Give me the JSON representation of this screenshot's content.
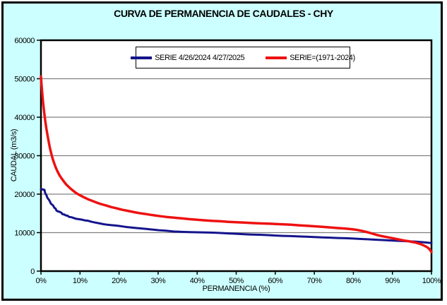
{
  "window": {
    "title": "CURVA DE PERMANENCIA DE CAUDALES - CHY"
  },
  "axes": {
    "x_title": "PERMANENCIA (%)",
    "y_title": "CAUDAL (m3/s)",
    "x_ticks": [
      "0%",
      "10%",
      "20%",
      "30%",
      "40%",
      "50%",
      "60%",
      "70%",
      "80%",
      "90%",
      "100%"
    ],
    "y_ticks": [
      "0",
      "10000",
      "20000",
      "30000",
      "40000",
      "50000",
      "60000"
    ]
  },
  "legend": {
    "entries": [
      {
        "label": "SERIE 4/26/2024 4/27/2025",
        "color": "#14148C"
      },
      {
        "label": "SERIE=(1971-2024)",
        "color": "#EE1111"
      }
    ]
  },
  "colors": {
    "background": "#CCFFFF",
    "plot_background": "#FFFFFF",
    "gridline": "#808080",
    "frame": "#000000",
    "series_blue": "#14148C",
    "series_red": "#EE1111"
  },
  "chart_data": {
    "type": "line",
    "title": "CURVA DE PERMANENCIA DE CAUDALES - CHY",
    "xlabel": "PERMANENCIA (%)",
    "ylabel": "CAUDAL (m3/s)",
    "xlim": [
      0,
      100
    ],
    "ylim": [
      0,
      60000
    ],
    "x_tick_step": 10,
    "y_tick_step": 10000,
    "grid": "horizontal-only",
    "legend_position": "top-center-inside",
    "series": [
      {
        "name": "SERIE 4/26/2024 4/27/2025",
        "color": "#14148C",
        "width": 3,
        "points": [
          [
            0,
            21300
          ],
          [
            0.6,
            21200
          ],
          [
            0.9,
            21100
          ],
          [
            1.0,
            20600
          ],
          [
            1.2,
            20000
          ],
          [
            1.4,
            19800
          ],
          [
            1.6,
            19200
          ],
          [
            1.8,
            18800
          ],
          [
            2.0,
            18600
          ],
          [
            2.3,
            18100
          ],
          [
            2.5,
            17600
          ],
          [
            2.8,
            17300
          ],
          [
            3.1,
            17100
          ],
          [
            3.4,
            16500
          ],
          [
            3.7,
            16300
          ],
          [
            4.0,
            15700
          ],
          [
            4.4,
            15500
          ],
          [
            4.8,
            15400
          ],
          [
            5.2,
            15200
          ],
          [
            5.5,
            14800
          ],
          [
            6.0,
            14700
          ],
          [
            6.3,
            14500
          ],
          [
            6.8,
            14400
          ],
          [
            7.2,
            14100
          ],
          [
            7.8,
            14000
          ],
          [
            8.4,
            13800
          ],
          [
            9.0,
            13600
          ],
          [
            9.6,
            13500
          ],
          [
            10.4,
            13400
          ],
          [
            11.2,
            13200
          ],
          [
            12,
            13100
          ],
          [
            13,
            12800
          ],
          [
            14,
            12600
          ],
          [
            15,
            12400
          ],
          [
            16,
            12200
          ],
          [
            17,
            12050
          ],
          [
            18,
            11950
          ],
          [
            19,
            11850
          ],
          [
            20,
            11750
          ],
          [
            21,
            11600
          ],
          [
            22,
            11450
          ],
          [
            23,
            11350
          ],
          [
            24,
            11250
          ],
          [
            25,
            11150
          ],
          [
            26,
            11050
          ],
          [
            27,
            10950
          ],
          [
            28,
            10850
          ],
          [
            29,
            10750
          ],
          [
            30,
            10650
          ],
          [
            32,
            10500
          ],
          [
            34,
            10300
          ],
          [
            36,
            10200
          ],
          [
            38,
            10150
          ],
          [
            40,
            10100
          ],
          [
            42,
            10050
          ],
          [
            44,
            10000
          ],
          [
            46,
            9900
          ],
          [
            48,
            9800
          ],
          [
            50,
            9700
          ],
          [
            52,
            9600
          ],
          [
            54,
            9500
          ],
          [
            56,
            9450
          ],
          [
            58,
            9350
          ],
          [
            60,
            9250
          ],
          [
            62,
            9150
          ],
          [
            64,
            9100
          ],
          [
            66,
            9000
          ],
          [
            68,
            8950
          ],
          [
            70,
            8850
          ],
          [
            72,
            8750
          ],
          [
            74,
            8700
          ],
          [
            76,
            8600
          ],
          [
            78,
            8550
          ],
          [
            80,
            8450
          ],
          [
            82,
            8350
          ],
          [
            84,
            8250
          ],
          [
            86,
            8150
          ],
          [
            88,
            8050
          ],
          [
            90,
            7950
          ],
          [
            92,
            7850
          ],
          [
            94,
            7750
          ],
          [
            96,
            7650
          ],
          [
            98,
            7500
          ],
          [
            100,
            7300
          ]
        ]
      },
      {
        "name": "SERIE=(1971-2024)",
        "color": "#EE1111",
        "width": 3.5,
        "points": [
          [
            0,
            50600
          ],
          [
            0.15,
            48500
          ],
          [
            0.3,
            46500
          ],
          [
            0.5,
            44200
          ],
          [
            0.7,
            42300
          ],
          [
            0.9,
            40600
          ],
          [
            1.1,
            39000
          ],
          [
            1.4,
            37000
          ],
          [
            1.7,
            35200
          ],
          [
            2.0,
            33500
          ],
          [
            2.3,
            32000
          ],
          [
            2.6,
            30700
          ],
          [
            3.0,
            29200
          ],
          [
            3.4,
            28000
          ],
          [
            3.8,
            26900
          ],
          [
            4.2,
            26000
          ],
          [
            4.6,
            25200
          ],
          [
            5.0,
            24500
          ],
          [
            5.5,
            23800
          ],
          [
            6.0,
            23100
          ],
          [
            6.5,
            22500
          ],
          [
            7.0,
            22000
          ],
          [
            7.5,
            21500
          ],
          [
            8.0,
            21100
          ],
          [
            8.5,
            20700
          ],
          [
            9.0,
            20300
          ],
          [
            9.5,
            20000
          ],
          [
            10,
            19700
          ],
          [
            11,
            19200
          ],
          [
            12,
            18700
          ],
          [
            13,
            18300
          ],
          [
            14,
            17900
          ],
          [
            15,
            17550
          ],
          [
            16,
            17250
          ],
          [
            17,
            16950
          ],
          [
            18,
            16650
          ],
          [
            19,
            16400
          ],
          [
            20,
            16150
          ],
          [
            21,
            15900
          ],
          [
            22,
            15700
          ],
          [
            23,
            15500
          ],
          [
            24,
            15300
          ],
          [
            25,
            15100
          ],
          [
            26,
            14950
          ],
          [
            27,
            14800
          ],
          [
            28,
            14650
          ],
          [
            29,
            14500
          ],
          [
            30,
            14350
          ],
          [
            32,
            14100
          ],
          [
            34,
            13900
          ],
          [
            36,
            13700
          ],
          [
            38,
            13500
          ],
          [
            40,
            13350
          ],
          [
            42,
            13200
          ],
          [
            44,
            13050
          ],
          [
            46,
            12950
          ],
          [
            48,
            12800
          ],
          [
            50,
            12700
          ],
          [
            52,
            12600
          ],
          [
            54,
            12500
          ],
          [
            56,
            12400
          ],
          [
            58,
            12350
          ],
          [
            60,
            12250
          ],
          [
            62,
            12150
          ],
          [
            64,
            12050
          ],
          [
            66,
            11900
          ],
          [
            68,
            11800
          ],
          [
            70,
            11650
          ],
          [
            72,
            11500
          ],
          [
            74,
            11350
          ],
          [
            76,
            11200
          ],
          [
            78,
            11050
          ],
          [
            80,
            10850
          ],
          [
            81,
            10700
          ],
          [
            82,
            10500
          ],
          [
            83,
            10250
          ],
          [
            84,
            10000
          ],
          [
            85,
            9700
          ],
          [
            86,
            9400
          ],
          [
            87,
            9150
          ],
          [
            88,
            8950
          ],
          [
            89,
            8750
          ],
          [
            90,
            8550
          ],
          [
            91,
            8350
          ],
          [
            92,
            8150
          ],
          [
            93,
            7950
          ],
          [
            94,
            7800
          ],
          [
            95,
            7600
          ],
          [
            96,
            7400
          ],
          [
            97,
            7100
          ],
          [
            98,
            6700
          ],
          [
            99,
            6150
          ],
          [
            99.5,
            5700
          ],
          [
            100,
            4950
          ]
        ]
      }
    ]
  }
}
